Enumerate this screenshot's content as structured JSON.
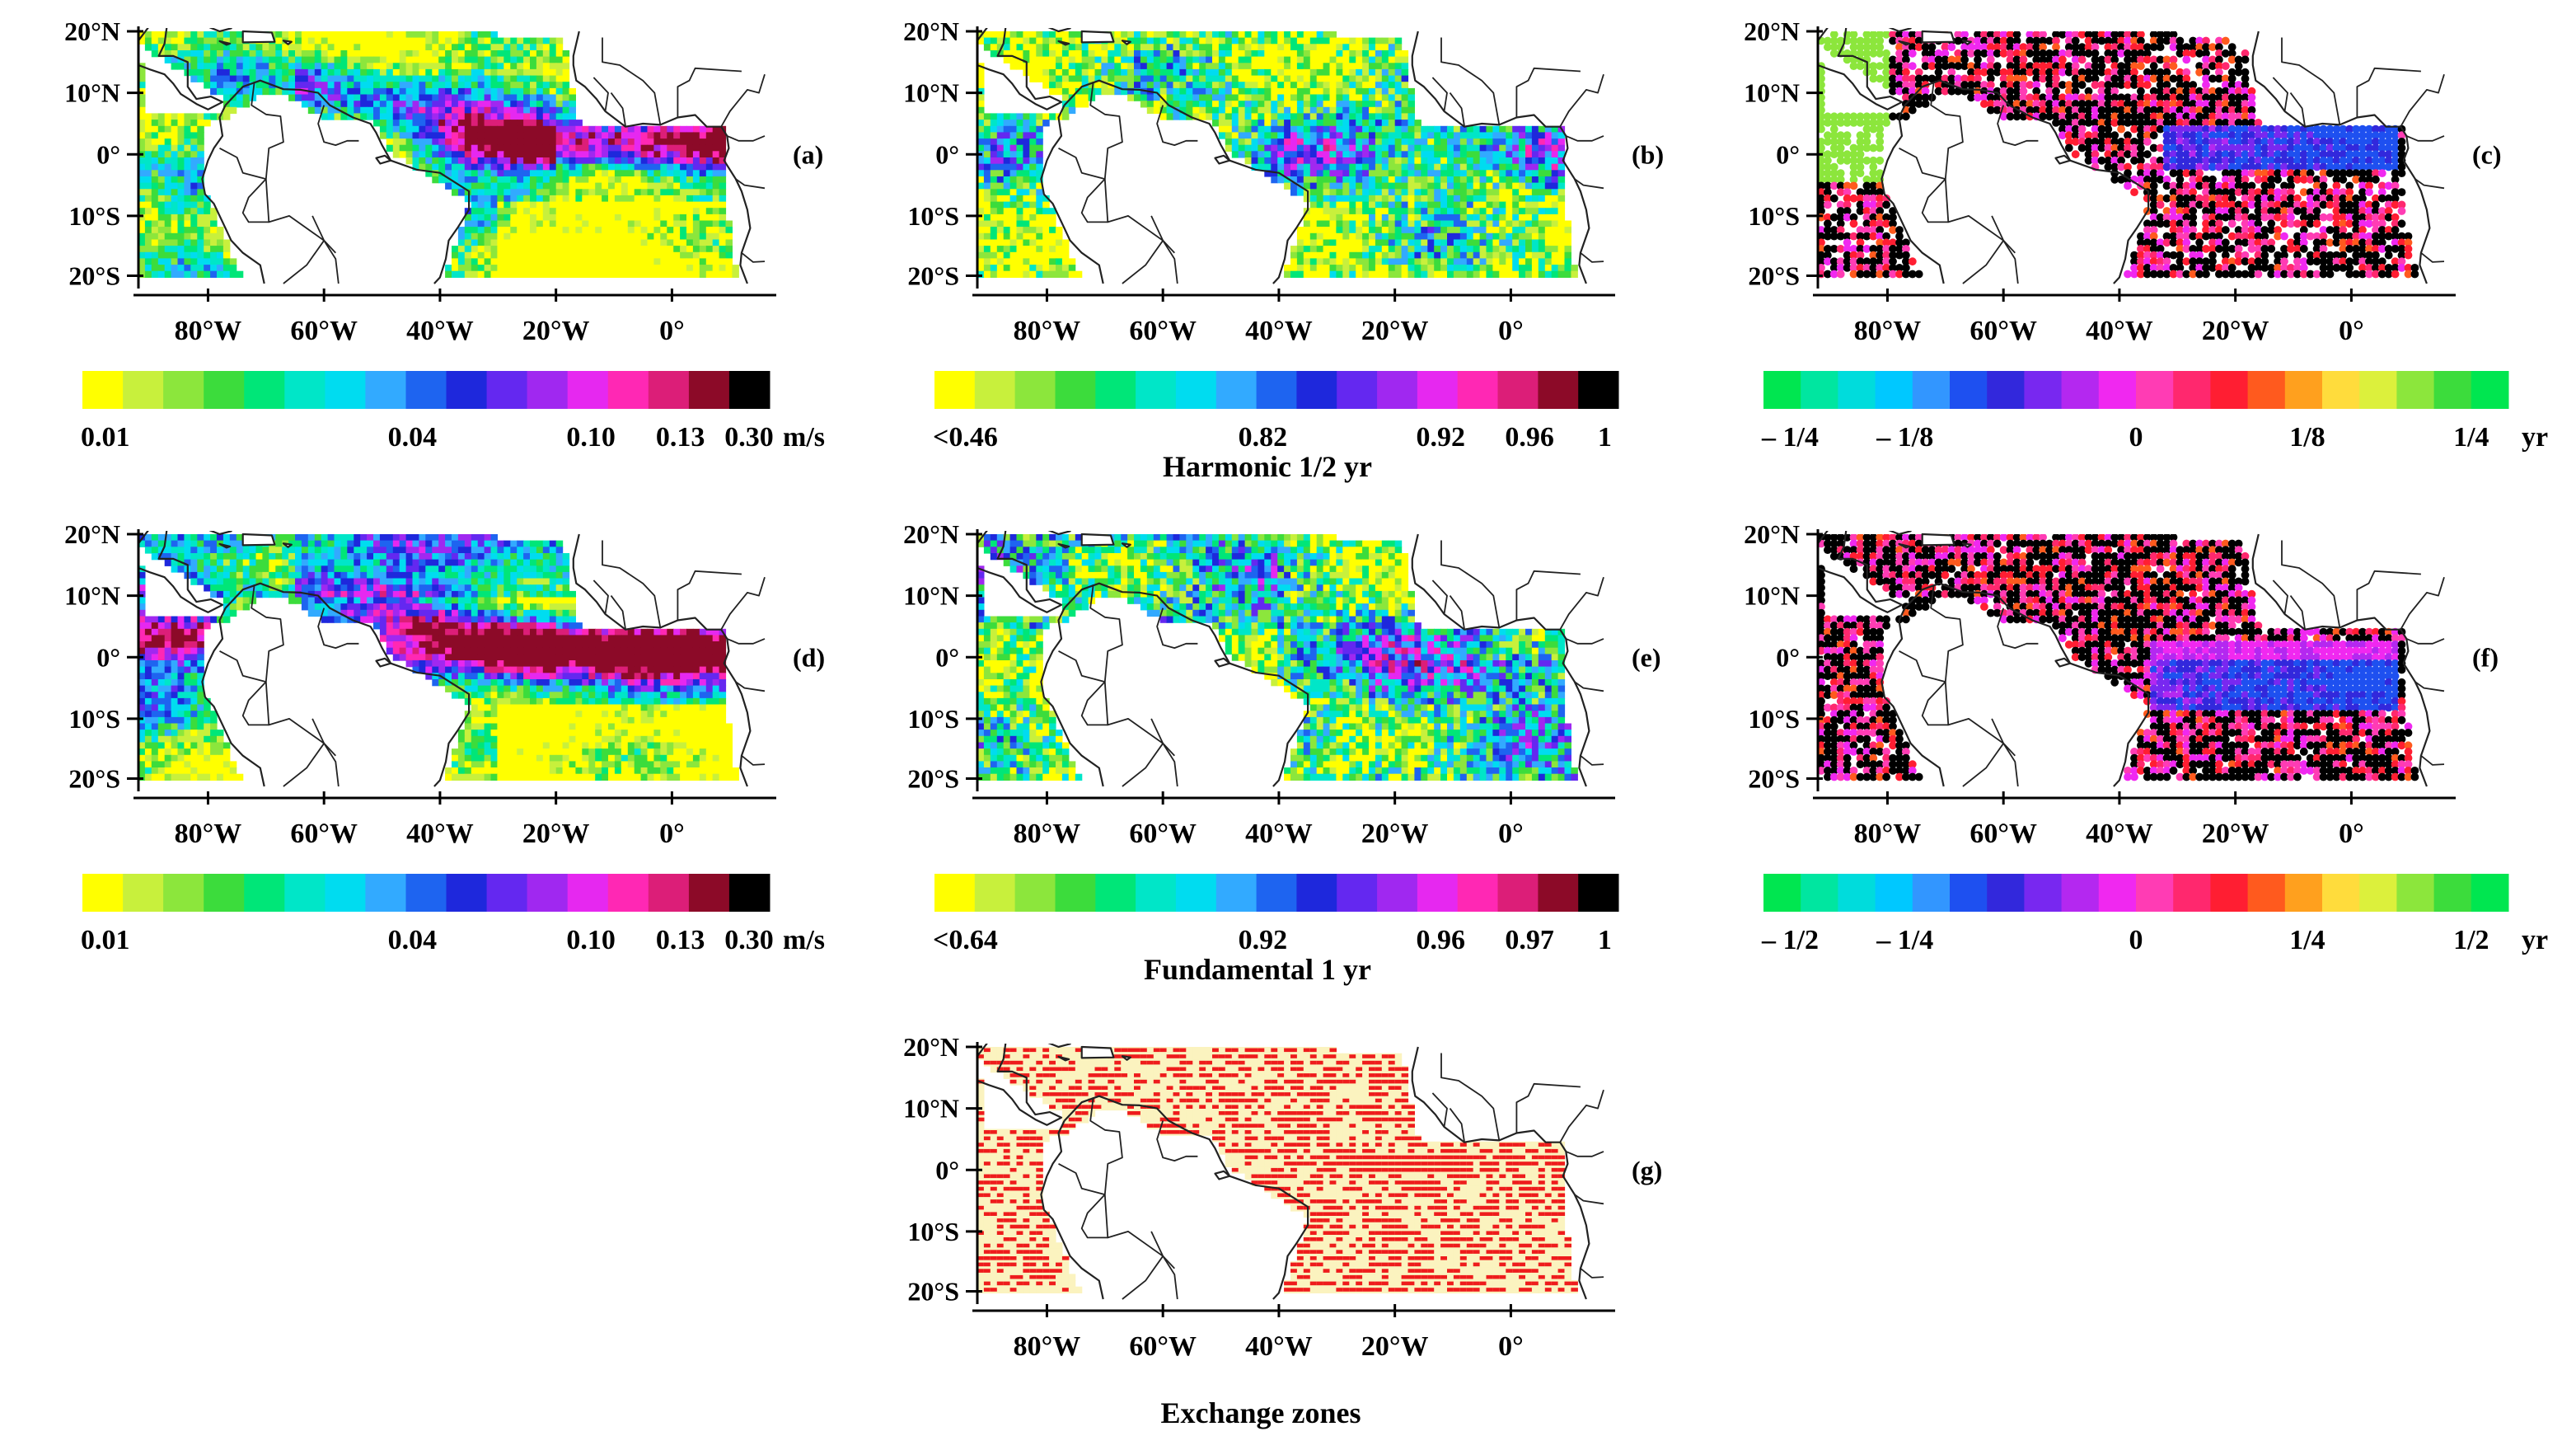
{
  "figure": {
    "lat_ticks": [
      "20°N",
      "10°N",
      "0°",
      "10°S",
      "20°S"
    ],
    "lon_ticks": [
      "80°W",
      "60°W",
      "40°W",
      "20°W",
      "0°"
    ],
    "panels": [
      {
        "id": "a",
        "label": "(a)",
        "field": "amplitude",
        "palette": "amp"
      },
      {
        "id": "b",
        "label": "(b)",
        "field": "correlation",
        "palette": "corr"
      },
      {
        "id": "c",
        "label": "(c)",
        "field": "phase",
        "palette": "phase",
        "sparse": true
      },
      {
        "id": "d",
        "label": "(d)",
        "field": "amplitude",
        "palette": "amp"
      },
      {
        "id": "e",
        "label": "(e)",
        "field": "correlation",
        "palette": "corr"
      },
      {
        "id": "f",
        "label": "(f)",
        "field": "phase",
        "palette": "phase",
        "sparse": true
      },
      {
        "id": "g",
        "label": "(g)",
        "field": "exchange",
        "palette": "exchange"
      }
    ],
    "colorbars": [
      {
        "id": "cb-a",
        "ticks": [
          "0.01",
          "0.04",
          "0.10",
          "0.13",
          "0.30"
        ],
        "unit": "m/s",
        "colors": [
          "#ffff00",
          "#c8f03c",
          "#8ce63c",
          "#3cdc3c",
          "#00e678",
          "#00e6c8",
          "#00dcf0",
          "#32aaff",
          "#1e64f0",
          "#1e28dc",
          "#6428f0",
          "#a028f0",
          "#e628f0",
          "#ff28b4",
          "#dc1e78",
          "#8c0a28",
          "#000000"
        ]
      },
      {
        "id": "cb-b",
        "ticks": [
          "<0.46",
          "0.82",
          "0.92",
          "0.96",
          "1"
        ],
        "unit": "",
        "colors": [
          "#ffff00",
          "#c8f03c",
          "#8ce63c",
          "#3cdc3c",
          "#00e678",
          "#00e6c8",
          "#00dcf0",
          "#32aaff",
          "#1e64f0",
          "#1e28dc",
          "#6428f0",
          "#a028f0",
          "#e628f0",
          "#ff28b4",
          "#dc1e78",
          "#8c0a28",
          "#000000"
        ]
      },
      {
        "id": "cb-c",
        "ticks": [
          "– 1/4",
          "– 1/8",
          "0",
          "1/8",
          "1/4"
        ],
        "unit": "yr",
        "colors": [
          "#00e650",
          "#00e6a0",
          "#00dcdc",
          "#00c8ff",
          "#3296ff",
          "#1e50f0",
          "#3228dc",
          "#7828f0",
          "#b428f0",
          "#f028f0",
          "#ff3cb4",
          "#ff286e",
          "#ff1e32",
          "#ff5a1e",
          "#ffa01e",
          "#ffdc3c",
          "#dcf03c",
          "#8ce63c",
          "#3cdc3c",
          "#00e650"
        ]
      },
      {
        "id": "cb-d",
        "ticks": [
          "0.01",
          "0.04",
          "0.10",
          "0.13",
          "0.30"
        ],
        "unit": "m/s",
        "colors": [
          "#ffff00",
          "#c8f03c",
          "#8ce63c",
          "#3cdc3c",
          "#00e678",
          "#00e6c8",
          "#00dcf0",
          "#32aaff",
          "#1e64f0",
          "#1e28dc",
          "#6428f0",
          "#a028f0",
          "#e628f0",
          "#ff28b4",
          "#dc1e78",
          "#8c0a28",
          "#000000"
        ]
      },
      {
        "id": "cb-e",
        "ticks": [
          "<0.64",
          "0.92",
          "0.96",
          "0.97",
          "1"
        ],
        "unit": "",
        "colors": [
          "#ffff00",
          "#c8f03c",
          "#8ce63c",
          "#3cdc3c",
          "#00e678",
          "#00e6c8",
          "#00dcf0",
          "#32aaff",
          "#1e64f0",
          "#1e28dc",
          "#6428f0",
          "#a028f0",
          "#e628f0",
          "#ff28b4",
          "#dc1e78",
          "#8c0a28",
          "#000000"
        ]
      },
      {
        "id": "cb-f",
        "ticks": [
          "– 1/2",
          "– 1/4",
          "0",
          "1/4",
          "1/2"
        ],
        "unit": "yr",
        "colors": [
          "#00e650",
          "#00e6a0",
          "#00dcdc",
          "#00c8ff",
          "#3296ff",
          "#1e50f0",
          "#3228dc",
          "#7828f0",
          "#b428f0",
          "#f028f0",
          "#ff3cb4",
          "#ff286e",
          "#ff1e32",
          "#ff5a1e",
          "#ffa01e",
          "#ffdc3c",
          "#dcf03c",
          "#8ce63c",
          "#3cdc3c",
          "#00e650"
        ]
      }
    ],
    "row_titles": [
      "Harmonic 1/2 yr",
      "Fundamental 1  yr",
      "Exchange zones"
    ],
    "exchange_colors": {
      "background": "#fbf3bf",
      "zone": "#ee1c1c"
    }
  }
}
